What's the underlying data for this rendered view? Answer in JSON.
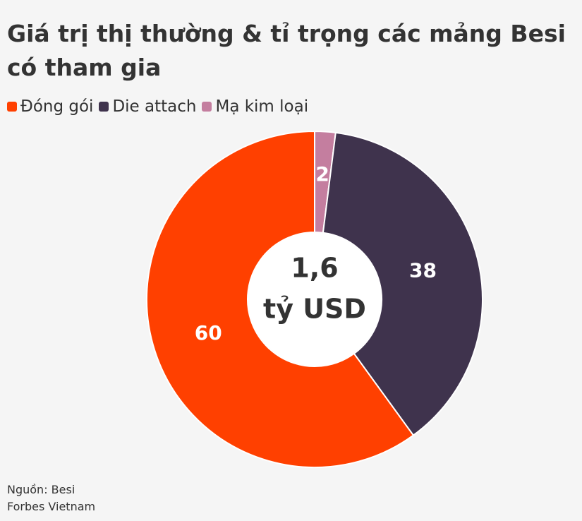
{
  "chart_data": {
    "type": "donut",
    "title": "Giá trị thị thường & tỉ trọng các mảng Besi có tham gia",
    "categories": [
      "Đóng gói",
      "Die attach",
      "Mạ kim loại"
    ],
    "values": [
      60,
      38,
      2
    ],
    "colors": [
      "#ff4000",
      "#3f334d",
      "#c47e9f"
    ],
    "center_label": [
      "1,6",
      "tỷ USD"
    ],
    "legend": "top-left",
    "source": [
      "Nguồn: Besi",
      "Forbes Vietnam"
    ]
  }
}
